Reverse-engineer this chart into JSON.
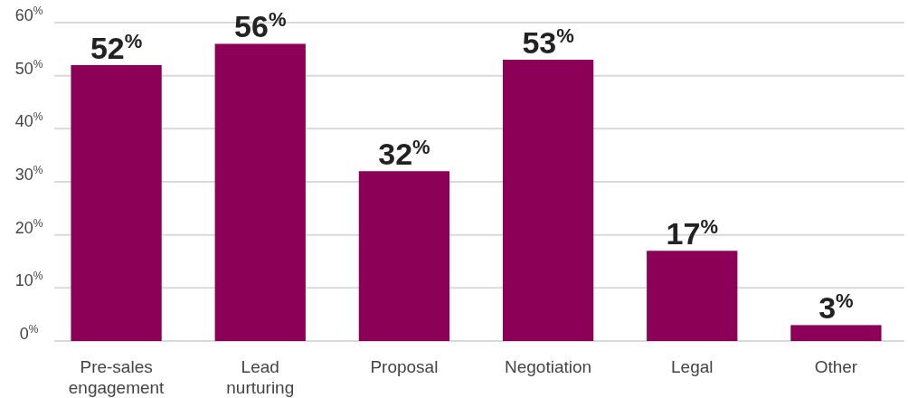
{
  "chart_data": {
    "type": "bar",
    "categories": [
      "Pre-sales engagement",
      "Lead nurturing",
      "Proposal",
      "Negotiation",
      "Legal",
      "Other"
    ],
    "values": [
      52,
      56,
      32,
      53,
      17,
      3
    ],
    "value_labels": [
      "52$^{%}$",
      "56$^{%}$",
      "32$^{%}$",
      "53$^{%}$",
      "17$^{%}$",
      "3$^{%}$"
    ],
    "color": "#8c0057",
    "ylim": [
      0,
      60
    ],
    "yticks": [
      {
        "value": 0,
        "label": "0$^{%}$"
      },
      {
        "value": 10,
        "label": "10$^{%}$"
      },
      {
        "value": 20,
        "label": "20$^{%}$"
      },
      {
        "value": 30,
        "label": "30$^{%}$"
      },
      {
        "value": 40,
        "label": "40$^{%}$"
      },
      {
        "value": 50,
        "label": "50$^{%}$"
      },
      {
        "value": 60,
        "label": "60$^{%}$"
      }
    ],
    "grid": "y"
  }
}
